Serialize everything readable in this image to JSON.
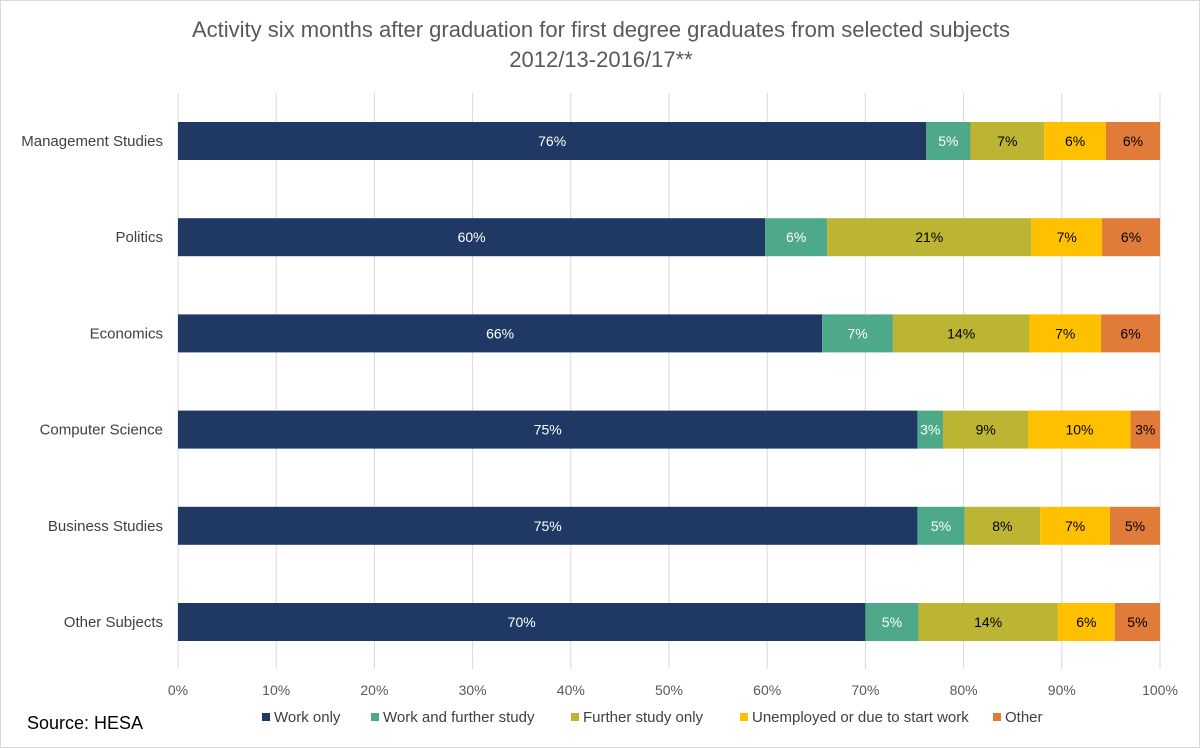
{
  "chart_data": {
    "type": "bar",
    "orientation": "horizontal",
    "stacked": true,
    "title": "Activity six months after graduation for first degree graduates from selected subjects",
    "subtitle": "2012/13-2016/17**",
    "categories": [
      "Management Studies",
      "Politics",
      "Economics",
      "Computer Science",
      "Business Studies",
      "Other Subjects"
    ],
    "series": [
      {
        "name": "Work only",
        "color": "#1f3864",
        "label_color": "#ffffff",
        "values": [
          76.2,
          59.8,
          65.6,
          75.3,
          75.3,
          70.0
        ],
        "labels": [
          "76%",
          "60%",
          "66%",
          "75%",
          "75%",
          "70%"
        ]
      },
      {
        "name": "Work and further study",
        "color": "#4ea98a",
        "label_color": "#ffffff",
        "values": [
          4.5,
          6.3,
          7.2,
          2.6,
          4.8,
          5.4
        ],
        "labels": [
          "5%",
          "6%",
          "7%",
          "3%",
          "5%",
          "5%"
        ]
      },
      {
        "name": "Further study only",
        "color": "#bcb433",
        "label_color": "#000000",
        "values": [
          7.5,
          20.8,
          13.9,
          8.7,
          7.7,
          14.2
        ],
        "labels": [
          "7%",
          "21%",
          "14%",
          "9%",
          "8%",
          "14%"
        ]
      },
      {
        "name": "Unemployed or due to start work",
        "color": "#ffc000",
        "label_color": "#000000",
        "values": [
          6.3,
          7.2,
          7.3,
          10.4,
          7.1,
          5.8
        ],
        "labels": [
          "6%",
          "7%",
          "7%",
          "10%",
          "7%",
          "6%"
        ]
      },
      {
        "name": "Other",
        "color": "#e07b39",
        "label_color": "#000000",
        "values": [
          5.5,
          5.9,
          6.0,
          3.0,
          5.1,
          4.6
        ],
        "labels": [
          "6%",
          "6%",
          "6%",
          "3%",
          "5%",
          "5%"
        ]
      }
    ],
    "xlim": [
      0,
      100
    ],
    "ticks": [
      "0%",
      "10%",
      "20%",
      "30%",
      "40%",
      "50%",
      "60%",
      "70%",
      "80%",
      "90%",
      "100%"
    ],
    "grid": true,
    "legend_position": "bottom"
  },
  "source": "Source: HESA"
}
